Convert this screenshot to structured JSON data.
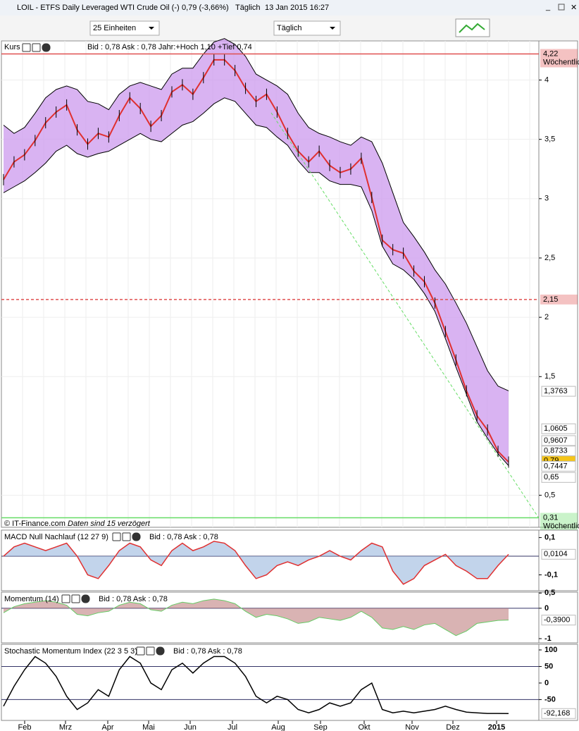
{
  "window": {
    "title": "LOIL - ETFS Daily Leveraged WTI Crude Oil (-)",
    "quote": "0,79 (-3,66%)",
    "interval": "Täglich",
    "timestamp": "13 Jan 2015 16:27"
  },
  "toolbar": {
    "units": "25 Einheiten",
    "period": "Täglich"
  },
  "chart_data": [
    {
      "type": "candlestick",
      "name": "Kurs",
      "header": "Bid : 0,78 Ask : 0,78 Jahr:+Hoch 1,10 +Tief 0,74",
      "footer_source": "© IT-Finance.com",
      "footer_note": "Daten sind 15 verzögert",
      "months": [
        "Feb",
        "Mrz",
        "Apr",
        "Mai",
        "Jun",
        "Jul",
        "Aug",
        "Sep",
        "Okt",
        "Nov",
        "Dez",
        "2015"
      ],
      "ylim": [
        0.23,
        4.33
      ],
      "yticks": [
        {
          "value": 4,
          "label": "4"
        },
        {
          "value": 3.5,
          "label": "3,5"
        },
        {
          "value": 3,
          "label": "3"
        },
        {
          "value": 2.5,
          "label": "2,5"
        },
        {
          "value": 2,
          "label": "2"
        },
        {
          "value": 1.5,
          "label": "1,5"
        },
        {
          "value": 0.5,
          "label": "0,5"
        }
      ],
      "series": [
        {
          "name": "close",
          "color": "#000000",
          "values": [
            3.16,
            3.31,
            3.37,
            3.49,
            3.64,
            3.73,
            3.79,
            3.58,
            3.46,
            3.55,
            3.52,
            3.7,
            3.85,
            3.76,
            3.61,
            3.7,
            3.9,
            3.96,
            3.88,
            4.02,
            4.17,
            4.17,
            4.08,
            3.93,
            3.82,
            3.88,
            3.73,
            3.55,
            3.4,
            3.31,
            3.4,
            3.28,
            3.22,
            3.25,
            3.34,
            3.01,
            2.65,
            2.57,
            2.54,
            2.39,
            2.3,
            2.12,
            1.88,
            1.64,
            1.38,
            1.17,
            1.05,
            0.87,
            0.78
          ]
        },
        {
          "name": "upper",
          "color": "#000000",
          "values": [
            3.62,
            3.55,
            3.6,
            3.72,
            3.85,
            3.92,
            3.95,
            3.92,
            3.82,
            3.8,
            3.75,
            3.88,
            3.95,
            3.98,
            3.95,
            3.92,
            4.05,
            4.1,
            4.1,
            4.22,
            4.32,
            4.35,
            4.3,
            4.2,
            4.05,
            4.0,
            3.95,
            3.88,
            3.72,
            3.6,
            3.55,
            3.52,
            3.48,
            3.45,
            3.52,
            3.48,
            3.3,
            3.05,
            2.8,
            2.68,
            2.55,
            2.4,
            2.28,
            2.12,
            1.95,
            1.75,
            1.55,
            1.42,
            1.38
          ]
        },
        {
          "name": "lower",
          "color": "#000000",
          "values": [
            3.05,
            3.1,
            3.15,
            3.22,
            3.3,
            3.4,
            3.45,
            3.38,
            3.35,
            3.38,
            3.4,
            3.45,
            3.5,
            3.55,
            3.5,
            3.48,
            3.55,
            3.62,
            3.65,
            3.72,
            3.8,
            3.85,
            3.82,
            3.72,
            3.62,
            3.6,
            3.52,
            3.45,
            3.32,
            3.22,
            3.22,
            3.15,
            3.12,
            3.12,
            3.1,
            2.9,
            2.6,
            2.45,
            2.4,
            2.32,
            2.2,
            2.05,
            1.82,
            1.58,
            1.35,
            1.12,
            0.98,
            0.85,
            0.75
          ]
        }
      ],
      "levels": [
        {
          "value": 4.22,
          "label": "4,22",
          "note": "Wöchentlich",
          "color": "#e05050",
          "style": "solid"
        },
        {
          "value": 2.15,
          "label": "2,15",
          "color": "#e05050",
          "style": "dashed"
        },
        {
          "value": 0.31,
          "label": "0,31",
          "note": "Wöchentlich",
          "color": "#66dd66",
          "style": "solid"
        }
      ],
      "price_labels": [
        {
          "value": 1.3763,
          "label": "1,3763",
          "color": "#000000"
        },
        {
          "value": 1.0605,
          "label": "1,0605",
          "color": "#8833cc"
        },
        {
          "value": 0.9607,
          "label": "0,9607",
          "color": "#e05050"
        },
        {
          "value": 0.8733,
          "label": "0,8733",
          "color": "#e05050"
        },
        {
          "value": 0.79,
          "label": "0,79",
          "color": "#000000",
          "bg": "#f5c518"
        },
        {
          "value": 0.7447,
          "label": "0,7447",
          "color": "#8833cc"
        },
        {
          "value": 0.65,
          "label": "0,65",
          "color": "#229922"
        }
      ]
    },
    {
      "type": "line",
      "name": "MACD Null Nachlauf (12 27 9)",
      "header": "Bid : 0,78 Ask : 0,78",
      "ylim": [
        -0.185,
        0.14
      ],
      "yticks": [
        {
          "value": 0.1,
          "label": "0,1"
        },
        {
          "value": -0.1,
          "label": "-0,1"
        }
      ],
      "zero": 0,
      "series": [
        {
          "name": "macd",
          "color": "#e03030",
          "values": [
            0.0,
            0.05,
            0.07,
            0.05,
            0.03,
            0.05,
            0.07,
            0.0,
            -0.1,
            -0.12,
            -0.05,
            0.03,
            0.07,
            0.05,
            -0.02,
            -0.05,
            0.03,
            0.07,
            0.03,
            0.05,
            0.08,
            0.07,
            0.03,
            -0.05,
            -0.12,
            -0.1,
            -0.05,
            -0.03,
            -0.05,
            -0.02,
            0.0,
            0.03,
            0.0,
            -0.02,
            0.03,
            0.07,
            0.05,
            -0.08,
            -0.15,
            -0.12,
            -0.05,
            -0.02,
            0.01,
            -0.05,
            -0.08,
            -0.12,
            -0.12,
            -0.05,
            0.01
          ]
        }
      ],
      "price_labels": [
        {
          "value": 0.0104,
          "label": "0,0104",
          "color": "#229922"
        }
      ]
    },
    {
      "type": "area",
      "name": "Momentum (14)",
      "header": "Bid : 0,78 Ask : 0,78",
      "ylim": [
        -1.14,
        0.53
      ],
      "yticks": [
        {
          "value": 0.5,
          "label": "0,5"
        },
        0,
        -1
      ],
      "zero": 0,
      "series": [
        {
          "name": "momentum",
          "color": "#c08080",
          "values": [
            -0.15,
            0.05,
            0.15,
            0.2,
            0.25,
            0.2,
            0.1,
            -0.2,
            -0.25,
            -0.15,
            -0.1,
            0.1,
            0.2,
            0.15,
            -0.05,
            -0.1,
            0.1,
            0.2,
            0.15,
            0.25,
            0.3,
            0.25,
            0.15,
            -0.1,
            -0.3,
            -0.2,
            -0.25,
            -0.35,
            -0.5,
            -0.45,
            -0.3,
            -0.35,
            -0.4,
            -0.3,
            -0.1,
            -0.3,
            -0.65,
            -0.7,
            -0.6,
            -0.7,
            -0.55,
            -0.5,
            -0.7,
            -0.9,
            -0.75,
            -0.5,
            -0.45,
            -0.4,
            -0.39
          ]
        }
      ],
      "price_labels": [
        {
          "value": -0.39,
          "label": "-0,3900",
          "color": "#e05050"
        }
      ]
    },
    {
      "type": "line",
      "name": "Stochastic Momentum Index (22 3 5 3)",
      "header": "Bid : 0,78 Ask : 0,78",
      "ylim": [
        -113,
        117
      ],
      "yticks": [
        100,
        50,
        0,
        -50
      ],
      "bands": [
        50,
        -50
      ],
      "series": [
        {
          "name": "smi",
          "color": "#000000",
          "values": [
            -70,
            -10,
            40,
            80,
            60,
            20,
            -40,
            -80,
            -60,
            -20,
            -40,
            40,
            80,
            60,
            0,
            -20,
            40,
            60,
            30,
            60,
            80,
            80,
            60,
            20,
            -40,
            -60,
            -40,
            -50,
            -80,
            -90,
            -80,
            -60,
            -70,
            -60,
            -20,
            0,
            -80,
            -90,
            -85,
            -90,
            -85,
            -80,
            -70,
            -80,
            -88,
            -90,
            -92,
            -92,
            -92.168
          ]
        }
      ],
      "price_labels": [
        {
          "value": -92.168,
          "label": "-92,168",
          "color": "#000000"
        }
      ]
    }
  ]
}
